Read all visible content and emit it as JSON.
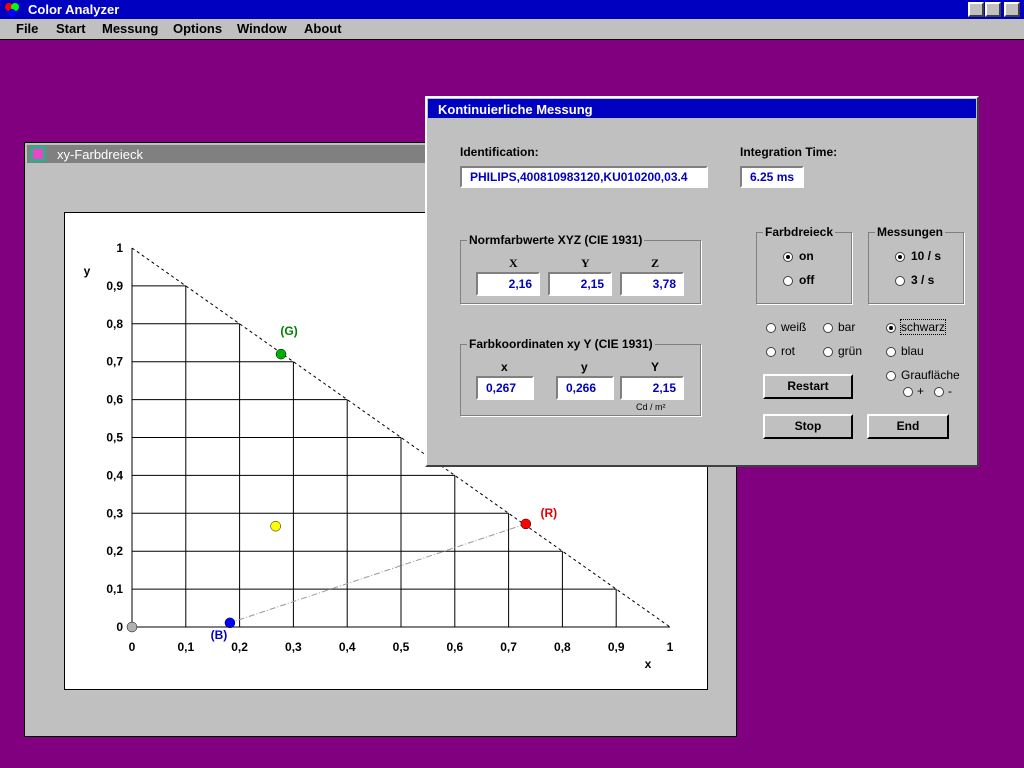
{
  "app": {
    "title": "Color Analyzer",
    "menu": [
      "File",
      "Start",
      "Messung",
      "Options",
      "Window",
      "About"
    ]
  },
  "plot_window": {
    "title": "xy-Farbdreieck"
  },
  "chart_data": {
    "type": "scatter",
    "x_label": "x",
    "y_label": "y",
    "xlim": [
      0,
      1
    ],
    "ylim": [
      0,
      1
    ],
    "xticks": [
      0,
      {
        "value": 0.1,
        "label": "0,1"
      },
      {
        "value": 0.2,
        "label": "0,2"
      },
      {
        "value": 0.3,
        "label": "0,3"
      },
      {
        "value": 0.4,
        "label": "0,4"
      },
      {
        "value": 0.5,
        "label": "0,5"
      },
      {
        "value": 0.6,
        "label": "0,6"
      },
      {
        "value": 0.7,
        "label": "0,7"
      },
      {
        "value": 0.8,
        "label": "0,8"
      },
      {
        "value": 0.9,
        "label": "0,9"
      },
      1
    ],
    "yticks": [
      0,
      {
        "value": 0.1,
        "label": "0,1"
      },
      {
        "value": 0.2,
        "label": "0,2"
      },
      {
        "value": 0.3,
        "label": "0,3"
      },
      {
        "value": 0.4,
        "label": "0,4"
      },
      {
        "value": 0.5,
        "label": "0,5"
      },
      {
        "value": 0.6,
        "label": "0,6"
      },
      {
        "value": 0.7,
        "label": "0,7"
      },
      {
        "value": 0.8,
        "label": "0,8"
      },
      {
        "value": 0.9,
        "label": "0,9"
      },
      1
    ],
    "grid": true,
    "points": [
      {
        "label": "(G)",
        "x": 0.277,
        "y": 0.72,
        "color": "#00b000",
        "label_color": "#008000"
      },
      {
        "label": "(R)",
        "x": 0.732,
        "y": 0.272,
        "color": "#ff0000",
        "label_color": "#e00000"
      },
      {
        "label": "(B)",
        "x": 0.182,
        "y": 0.011,
        "color": "#0000ff",
        "label_color": "#0000c0"
      },
      {
        "x": 0.267,
        "y": 0.266,
        "color": "#ffff00"
      },
      {
        "x": 0,
        "y": 0,
        "color": "#b0b0b0"
      }
    ]
  },
  "dialog": {
    "title": "Kontinuierliche Messung",
    "identification_label": "Identification:",
    "identification": "PHILIPS,400810983120,KU010200,03.4",
    "integration_label": "Integration Time:",
    "integration": "6.25 ms",
    "xyz_group": {
      "title": "Normfarbwerte XYZ (CIE 1931)",
      "headers": [
        "X",
        "Y",
        "Z"
      ],
      "values": [
        "2,16",
        "2,15",
        "3,78"
      ]
    },
    "xyY_group": {
      "title": "Farbkoordinaten xy Y (CIE 1931)",
      "headers": [
        "x",
        "y",
        "Y"
      ],
      "values": [
        "0,267",
        "0,266",
        "2,15"
      ],
      "unit": "Cd / m²"
    },
    "farbdreieck": {
      "title": "Farbdreieck",
      "options": [
        "on",
        "off"
      ]
    },
    "messungen": {
      "title": "Messungen",
      "options": [
        "10 / s",
        "3 / s"
      ]
    },
    "background": [
      "weiß",
      "bar",
      "schwarz",
      "rot",
      "grün",
      "blau",
      "Graufläche",
      "+",
      "-"
    ],
    "buttons": [
      "Restart",
      "Stop",
      "End"
    ]
  }
}
